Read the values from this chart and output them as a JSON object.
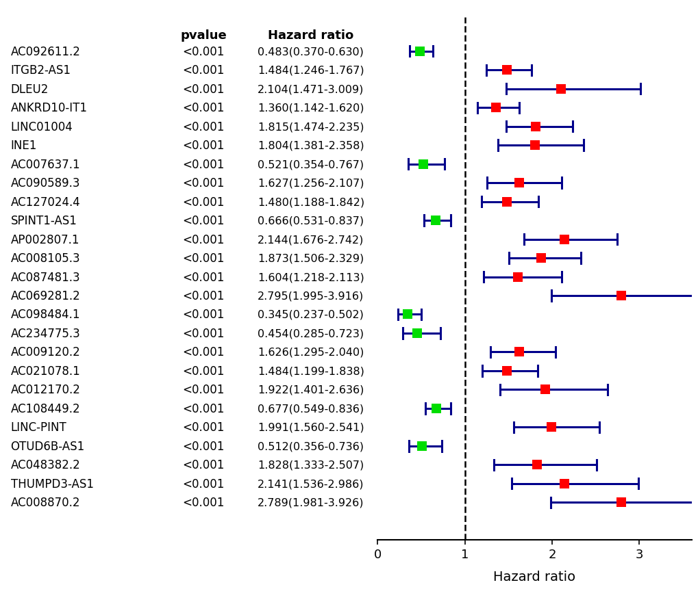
{
  "genes": [
    "AC092611.2",
    "ITGB2-AS1",
    "DLEU2",
    "ANKRD10-IT1",
    "LINC01004",
    "INE1",
    "AC007637.1",
    "AC090589.3",
    "AC127024.4",
    "SPINT1-AS1",
    "AP002807.1",
    "AC008105.3",
    "AC087481.3",
    "AC069281.2",
    "AC098484.1",
    "AC234775.3",
    "AC009120.2",
    "AC021078.1",
    "AC012170.2",
    "AC108449.2",
    "LINC-PINT",
    "OTUD6B-AS1",
    "AC048382.2",
    "THUMPD3-AS1",
    "AC008870.2"
  ],
  "pvalues": [
    "<0.001",
    "<0.001",
    "<0.001",
    "<0.001",
    "<0.001",
    "<0.001",
    "<0.001",
    "<0.001",
    "<0.001",
    "<0.001",
    "<0.001",
    "<0.001",
    "<0.001",
    "<0.001",
    "<0.001",
    "<0.001",
    "<0.001",
    "<0.001",
    "<0.001",
    "<0.001",
    "<0.001",
    "<0.001",
    "<0.001",
    "<0.001",
    "<0.001"
  ],
  "hr_labels": [
    "0.483(0.370-0.630)",
    "1.484(1.246-1.767)",
    "2.104(1.471-3.009)",
    "1.360(1.142-1.620)",
    "1.815(1.474-2.235)",
    "1.804(1.381-2.358)",
    "0.521(0.354-0.767)",
    "1.627(1.256-2.107)",
    "1.480(1.188-1.842)",
    "0.666(0.531-0.837)",
    "2.144(1.676-2.742)",
    "1.873(1.506-2.329)",
    "1.604(1.218-2.113)",
    "2.795(1.995-3.916)",
    "0.345(0.237-0.502)",
    "0.454(0.285-0.723)",
    "1.626(1.295-2.040)",
    "1.484(1.199-1.838)",
    "1.922(1.401-2.636)",
    "0.677(0.549-0.836)",
    "1.991(1.560-2.541)",
    "0.512(0.356-0.736)",
    "1.828(1.333-2.507)",
    "2.141(1.536-2.986)",
    "2.789(1.981-3.926)"
  ],
  "hr": [
    0.483,
    1.484,
    2.104,
    1.36,
    1.815,
    1.804,
    0.521,
    1.627,
    1.48,
    0.666,
    2.144,
    1.873,
    1.604,
    2.795,
    0.345,
    0.454,
    1.626,
    1.484,
    1.922,
    0.677,
    1.991,
    0.512,
    1.828,
    2.141,
    2.789
  ],
  "ci_low": [
    0.37,
    1.246,
    1.471,
    1.142,
    1.474,
    1.381,
    0.354,
    1.256,
    1.188,
    0.531,
    1.676,
    1.506,
    1.218,
    1.995,
    0.237,
    0.285,
    1.295,
    1.199,
    1.401,
    0.549,
    1.56,
    0.356,
    1.333,
    1.536,
    1.981
  ],
  "ci_high": [
    0.63,
    1.767,
    3.009,
    1.62,
    2.235,
    2.358,
    0.767,
    2.107,
    1.842,
    0.837,
    2.742,
    2.329,
    2.113,
    3.916,
    0.502,
    0.723,
    2.04,
    1.838,
    2.636,
    0.836,
    2.541,
    0.736,
    2.507,
    2.986,
    3.926
  ],
  "color_protective": "#00dd00",
  "color_risk": "#ff0000",
  "line_color": "#00008B",
  "xlabel": "Hazard ratio",
  "col2_header": "pvalue",
  "col3_header": "Hazard ratio",
  "xmin": 0,
  "xmax": 3.6,
  "xticks": [
    0,
    1,
    2,
    3
  ],
  "background_color": "#ffffff",
  "fig_width": 10.2,
  "fig_height": 8.78,
  "dpi": 100
}
